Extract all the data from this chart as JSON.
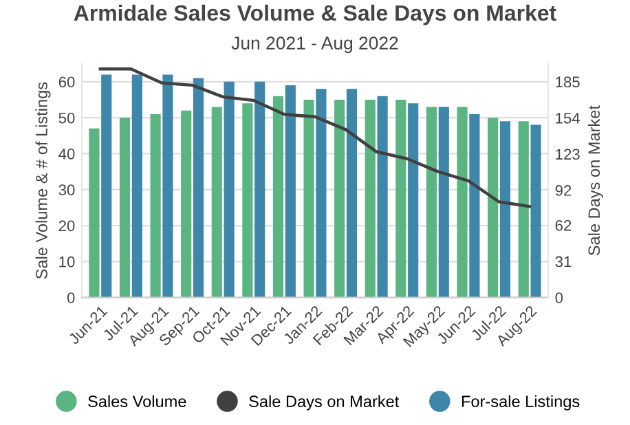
{
  "chart_data": {
    "type": "bar",
    "title": "Armidale Sales Volume & Sale Days on Market",
    "subtitle": "Jun 2021 - Aug 2022",
    "ylabel": "Sale Volume & # of Listings",
    "y2label": "Sale Days on Market",
    "categories": [
      "Jun-21",
      "Jul-21",
      "Aug-21",
      "Sep-21",
      "Oct-21",
      "Nov-21",
      "Dec-21",
      "Jan-22",
      "Feb-22",
      "Mar-22",
      "Apr-22",
      "May-22",
      "Jun-22",
      "Jul-22",
      "Aug-22"
    ],
    "series": [
      {
        "name": "Sales Volume",
        "color": "#5bb583",
        "values": [
          47,
          50,
          51,
          52,
          53,
          54,
          56,
          55,
          55,
          55,
          55,
          53,
          53,
          50,
          49
        ]
      },
      {
        "name": "Sale Days on Market",
        "type": "line",
        "axis": "y2",
        "color": "#404040",
        "values": [
          196,
          196,
          184,
          182,
          172,
          169,
          157,
          155,
          144,
          125,
          119,
          108,
          100,
          82,
          78
        ]
      },
      {
        "name": "For-sale Listings",
        "color": "#3f86ab",
        "values": [
          62,
          62,
          62,
          61,
          60,
          60,
          59,
          58,
          58,
          56,
          54,
          53,
          51,
          49,
          48
        ]
      }
    ],
    "ylim": [
      0,
      65
    ],
    "yticks": [
      0,
      10,
      20,
      30,
      40,
      50,
      60
    ],
    "y2lim": [
      0,
      200.4
    ],
    "y2ticks": [
      0,
      31,
      62,
      92,
      123,
      154,
      185
    ],
    "grid": "y",
    "legend": "bottom",
    "marker": "none",
    "line_style": "solid"
  }
}
